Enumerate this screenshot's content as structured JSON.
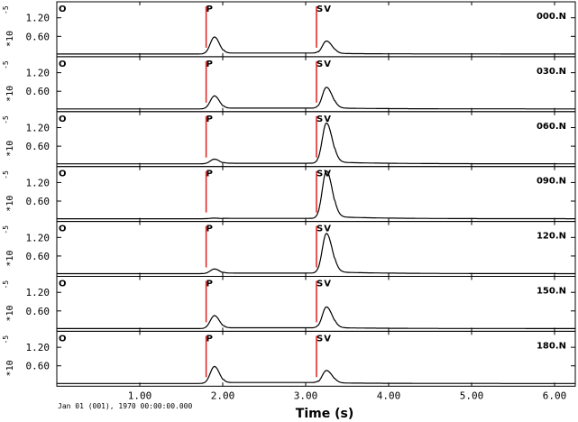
{
  "chart_data": {
    "type": "line",
    "xlabel": "Time (s)",
    "ylabel_multiplier": "*10",
    "ylabel_exponent": "-5",
    "xlim": [
      0.0,
      6.25
    ],
    "ylim": [
      0.0,
      1.6
    ],
    "x_ticks": [
      1.0,
      2.0,
      3.0,
      4.0,
      5.0,
      6.0
    ],
    "x_tick_labels": [
      "1.00",
      "2.00",
      "3.00",
      "4.00",
      "5.00",
      "6.00"
    ],
    "y_ticks": [
      0.6,
      1.2
    ],
    "y_tick_labels": [
      "0.60",
      "1.20"
    ],
    "date_label": "Jan 01 (001), 1970 00:00:00.000",
    "origin_marker": {
      "label": "O",
      "time": 0.0
    },
    "phase_markers": [
      {
        "label": "P",
        "time": 1.8
      },
      {
        "label": "S",
        "time": 3.13
      },
      {
        "label": "V",
        "time": 3.22
      }
    ],
    "marker_color": "#e02020",
    "trace_color": "#000000",
    "grid": false,
    "series": [
      {
        "name": "000.N",
        "p_amp": 0.55,
        "s_amp": 0.42,
        "plateau": 0.05
      },
      {
        "name": "030.N",
        "p_amp": 0.42,
        "s_amp": 0.7,
        "plateau": 0.04
      },
      {
        "name": "060.N",
        "p_amp": 0.15,
        "s_amp": 1.32,
        "plateau": 0.03
      },
      {
        "name": "090.N",
        "p_amp": 0.02,
        "s_amp": 1.55,
        "plateau": 0.02
      },
      {
        "name": "120.N",
        "p_amp": 0.15,
        "s_amp": 1.3,
        "plateau": 0.03
      },
      {
        "name": "150.N",
        "p_amp": 0.42,
        "s_amp": 0.7,
        "plateau": 0.04
      },
      {
        "name": "180.N",
        "p_amp": 0.55,
        "s_amp": 0.42,
        "plateau": 0.05
      }
    ]
  }
}
